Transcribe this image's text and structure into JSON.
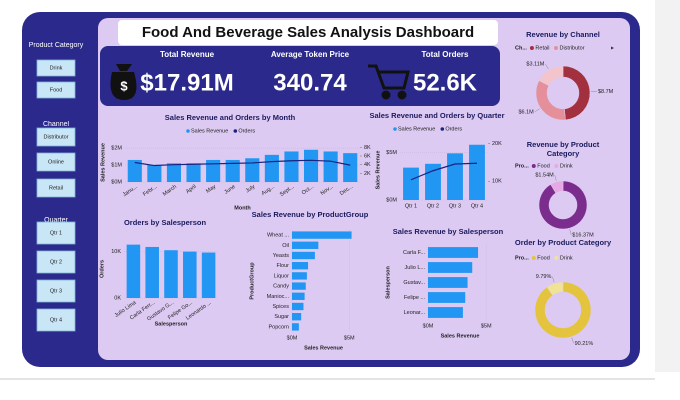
{
  "title": "Food And Beverage Sales Analysis Dashboard",
  "slicers": [
    {
      "title": "Product Category",
      "items": [
        "Drink",
        "Food"
      ]
    },
    {
      "title": "Channel",
      "items": [
        "Distributor",
        "Online",
        "Retail"
      ]
    },
    {
      "title": "Quarter",
      "items": [
        "Qtr 1",
        "Qtr 2",
        "Qtr 3",
        "Qtr 4"
      ]
    }
  ],
  "kpis": [
    {
      "label": "Total Revenue",
      "value": "$17.91M"
    },
    {
      "label": "Average Token Price",
      "value": "340.74"
    },
    {
      "label": "Total Orders",
      "value": "52.6K"
    }
  ],
  "chart_data": [
    {
      "type": "combo",
      "title": "Sales Revenue and Orders by Month",
      "x_label": "Month",
      "y_label": "Sales Revenue",
      "categories": [
        "Janu...",
        "Febr...",
        "March",
        "April",
        "May",
        "June",
        "July",
        "Aug...",
        "Sept...",
        "Oct...",
        "Nov...",
        "Dec..."
      ],
      "series": [
        {
          "name": "Sales Revenue",
          "color": "#2196f3",
          "values": [
            1300000,
            1000000,
            1100000,
            1100000,
            1300000,
            1300000,
            1400000,
            1600000,
            1800000,
            1900000,
            1800000,
            1700000
          ]
        },
        {
          "name": "Orders",
          "color": "#1a237e",
          "axis": "y2",
          "values": [
            4500,
            3800,
            4000,
            4100,
            4200,
            4300,
            4400,
            4700,
            4900,
            5000,
            4800,
            3900
          ]
        }
      ],
      "ylim": [
        0,
        2300000
      ],
      "yticks": [
        {
          "value": 0,
          "label": "$0M"
        },
        {
          "value": 1000000,
          "label": "$1M"
        },
        {
          "value": 2000000,
          "label": "$2M"
        }
      ],
      "y2lim": [
        0,
        9000
      ],
      "y2ticks": [
        {
          "value": 2000,
          "label": "2K"
        },
        {
          "value": 4000,
          "label": "4K"
        },
        {
          "value": 6000,
          "label": "6K"
        },
        {
          "value": 8000,
          "label": "8K"
        }
      ]
    },
    {
      "type": "combo",
      "title": "Sales Revenue and Orders by Quarter",
      "y_label": "Sales Revenue",
      "categories": [
        "Qtr 1",
        "Qtr 2",
        "Qtr 3",
        "Qtr 4"
      ],
      "series": [
        {
          "name": "Sales Revenue",
          "color": "#2196f3",
          "values": [
            3400000,
            3800000,
            4900000,
            5800000
          ]
        },
        {
          "name": "Orders",
          "color": "#1a237e",
          "axis": "y2",
          "values": [
            10400,
            12800,
            14600,
            14800
          ]
        }
      ],
      "ylim": [
        0,
        6300000
      ],
      "yticks": [
        {
          "value": 0,
          "label": "$0M"
        },
        {
          "value": 5000000,
          "label": "$5M"
        }
      ],
      "y2lim": [
        5000,
        21000
      ],
      "y2ticks": [
        {
          "value": 10000,
          "label": "10K"
        },
        {
          "value": 20000,
          "label": "20K"
        }
      ]
    },
    {
      "type": "bar",
      "title": "Orders by Salesperson",
      "x_label": "Salesperson",
      "y_label": "Orders",
      "categories": [
        "Julio Lima",
        "Carla Ferr...",
        "Gustavo G...",
        "Felipe Go...",
        "Leonardo ..."
      ],
      "values": [
        11500,
        11000,
        10300,
        10000,
        9800
      ],
      "color": "#2196f3",
      "ylim": [
        0,
        12500
      ],
      "yticks": [
        {
          "value": 0,
          "label": "0K"
        },
        {
          "value": 10000,
          "label": "10K"
        }
      ]
    },
    {
      "type": "hbar",
      "title": "Sales Revenue by ProductGroup",
      "x_label": "Sales Revenue",
      "y_label": "ProductGroup",
      "categories": [
        "Wheat ...",
        "Oil",
        "Yeasts",
        "Flour",
        "Liquor",
        "Candy",
        "Manioc...",
        "Spices",
        "Sugar",
        "Popcorn"
      ],
      "values": [
        5200000,
        2300000,
        2000000,
        1400000,
        1300000,
        1200000,
        1100000,
        1000000,
        800000,
        600000
      ],
      "color": "#2196f3",
      "xlim": [
        0,
        5500000
      ],
      "xticks": [
        {
          "value": 0,
          "label": "$0M"
        },
        {
          "value": 5000000,
          "label": "$5M"
        }
      ]
    },
    {
      "type": "hbar",
      "title": "Sales Revenue by Salesperson",
      "x_label": "Sales Revenue",
      "y_label": "Salesperson",
      "categories": [
        "Carla F...",
        "Julio L...",
        "Gustav...",
        "Felipe ...",
        "Leonar..."
      ],
      "values": [
        4300000,
        3800000,
        3400000,
        3200000,
        3000000
      ],
      "color": "#2196f3",
      "xlim": [
        0,
        5500000
      ],
      "xticks": [
        {
          "value": 0,
          "label": "$0M"
        },
        {
          "value": 5000000,
          "label": "$5M"
        }
      ]
    },
    {
      "type": "pie",
      "title": "Revenue by Channel",
      "legend_title": "Ch...",
      "categories": [
        "Retail",
        "Distributor",
        null
      ],
      "values": [
        8.7,
        6.1,
        3.11
      ],
      "value_labels": [
        "$8.7M",
        "$6.1M",
        "$3.11M"
      ],
      "colors": [
        "#a3303f",
        "#e58f9a",
        "#f3c4cb"
      ]
    },
    {
      "type": "pie",
      "title": "Revenue by Product Category",
      "legend_title": "Pro...",
      "categories": [
        "Food",
        "Drink"
      ],
      "values": [
        16.37,
        1.54
      ],
      "value_labels": [
        "$16.37M",
        "$1.54M"
      ],
      "colors": [
        "#7b2d8e",
        "#e7a9e3"
      ]
    },
    {
      "type": "pie",
      "title": "Order by Product Category",
      "legend_title": "Pro...",
      "categories": [
        "Food",
        "Drink"
      ],
      "values": [
        90.21,
        9.79
      ],
      "value_labels": [
        "90.21%",
        "9.79%"
      ],
      "colors": [
        "#e3c43c",
        "#f1e394"
      ]
    }
  ]
}
